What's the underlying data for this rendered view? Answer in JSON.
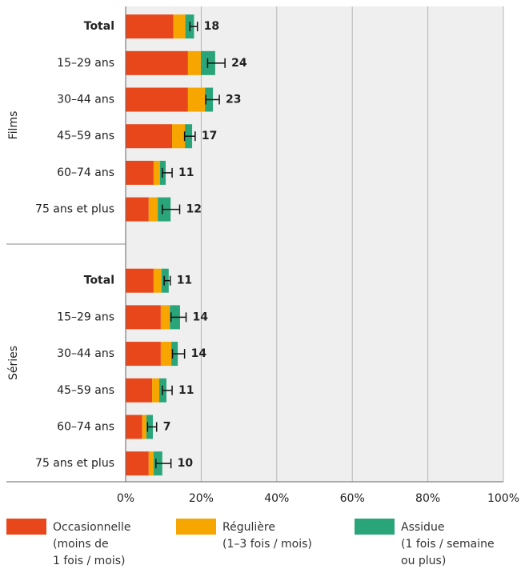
{
  "chart_data": {
    "type": "bar",
    "orientation": "horizontal",
    "stacked": true,
    "xlim": [
      0,
      100
    ],
    "xticks": [
      {
        "value": 0,
        "label": "0%"
      },
      {
        "value": 20,
        "label": "20%"
      },
      {
        "value": 40,
        "label": "40%"
      },
      {
        "value": 60,
        "label": "60%"
      },
      {
        "value": 80,
        "label": "80%"
      },
      {
        "value": 100,
        "label": "100%"
      }
    ],
    "grid": true,
    "legend": "bottom",
    "series": [
      {
        "name": "Occasionnelle\n(moins de\n1 fois / mois)",
        "color": "#e8471c"
      },
      {
        "name": "Régulière\n(1–3 fois / mois)",
        "color": "#f7a600"
      },
      {
        "name": "Assidue\n(1 fois / semaine\nou plus)",
        "color": "#2aa57a"
      }
    ],
    "panels": [
      {
        "label": "Films",
        "categories": [
          "Total",
          "15–29 ans",
          "30–44 ans",
          "45–59 ans",
          "60–74 ans",
          "75 ans et plus"
        ],
        "values": [
          [
            12.6,
            16.5,
            16.5,
            12.3,
            7.4,
            6.1
          ],
          [
            3.2,
            3.4,
            4.5,
            3.4,
            1.7,
            2.4
          ],
          [
            2.3,
            3.8,
            2.1,
            1.9,
            1.5,
            3.4
          ]
        ],
        "totals": [
          18,
          24,
          23,
          17,
          11,
          12
        ],
        "errors": [
          1,
          2.3,
          1.8,
          1.4,
          1.3,
          2.3
        ]
      },
      {
        "label": "Séries",
        "categories": [
          "Total",
          "15–29 ans",
          "30–44 ans",
          "45–59 ans",
          "60–74 ans",
          "75 ans et plus"
        ],
        "values": [
          [
            7.4,
            9.3,
            9.3,
            7,
            4.4,
            6.1
          ],
          [
            2.1,
            2.4,
            2.8,
            1.9,
            1.1,
            1.3
          ],
          [
            1.9,
            2.7,
            1.7,
            1.9,
            1.7,
            2.3
          ]
        ],
        "totals": [
          11,
          14,
          14,
          11,
          7,
          10
        ],
        "errors": [
          0.8,
          2,
          1.6,
          1.3,
          1.2,
          2
        ]
      }
    ]
  }
}
